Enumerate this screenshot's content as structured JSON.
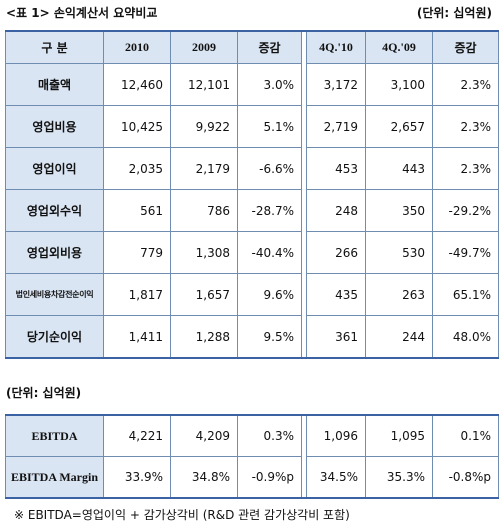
{
  "caption": "<표 1> 손익계산서 요약비교",
  "unit_top": "(단위: 십억원)",
  "unit_mid": "(단위: 십억원)",
  "main_table": {
    "headers": [
      "구 분",
      "2010",
      "2009",
      "증감",
      "4Q.'10",
      "4Q.'09",
      "증감"
    ],
    "rows": [
      {
        "label": "매출액",
        "v": [
          "12,460",
          "12,101",
          "3.0%",
          "3,172",
          "3,100",
          "2.3%"
        ]
      },
      {
        "label": "영업비용",
        "v": [
          "10,425",
          "9,922",
          "5.1%",
          "2,719",
          "2,657",
          "2.3%"
        ]
      },
      {
        "label": "영업이익",
        "v": [
          "2,035",
          "2,179",
          "-6.6%",
          "453",
          "443",
          "2.3%"
        ]
      },
      {
        "label": "영업외수익",
        "v": [
          "561",
          "786",
          "-28.7%",
          "248",
          "350",
          "-29.2%"
        ]
      },
      {
        "label": "영업외비용",
        "v": [
          "779",
          "1,308",
          "-40.4%",
          "266",
          "530",
          "-49.7%"
        ]
      },
      {
        "label": "법인세비용차감전순이익",
        "v": [
          "1,817",
          "1,657",
          "9.6%",
          "435",
          "263",
          "65.1%"
        ]
      },
      {
        "label": "당기순이익",
        "v": [
          "1,411",
          "1,288",
          "9.5%",
          "361",
          "244",
          "48.0%"
        ]
      }
    ]
  },
  "ebitda_table": {
    "rows": [
      {
        "label": "EBITDA",
        "v": [
          "4,221",
          "4,209",
          "0.3%",
          "1,096",
          "1,095",
          "0.1%"
        ]
      },
      {
        "label": "EBITDA Margin",
        "v": [
          "33.9%",
          "34.8%",
          "-0.9%p",
          "34.5%",
          "35.3%",
          "-0.8%p"
        ]
      }
    ]
  },
  "footnote": "※ EBITDA=영업이익 + 감가상각비 (R&D 관련 감가상각비 포함)"
}
